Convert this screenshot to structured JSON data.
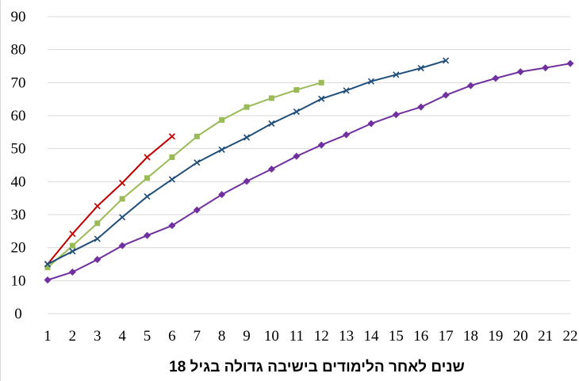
{
  "chart_data": {
    "type": "line",
    "title": "",
    "xlabel": "שנים לאחר הלימודים בישיבה גדולה בגיל 18",
    "ylabel": "",
    "ylim": [
      0,
      90
    ],
    "yticks": [
      0,
      10,
      20,
      30,
      40,
      50,
      60,
      70,
      80,
      90
    ],
    "xlim": [
      1,
      22
    ],
    "x": [
      1,
      2,
      3,
      4,
      5,
      6,
      7,
      8,
      9,
      10,
      11,
      12,
      13,
      14,
      15,
      16,
      17,
      18,
      19,
      20,
      21,
      22
    ],
    "grid": true,
    "legend": "none",
    "series": [
      {
        "color": "#c00000",
        "marker": "x",
        "x": [
          1,
          2,
          3,
          4,
          5,
          6
        ],
        "values": [
          15.0,
          24.2,
          32.6,
          39.6,
          47.4,
          53.7
        ]
      },
      {
        "color": "#9bbb59",
        "marker": "square",
        "x": [
          1,
          2,
          3,
          4,
          5,
          6,
          7,
          8,
          9,
          10,
          11,
          12
        ],
        "values": [
          14.0,
          20.6,
          27.4,
          34.8,
          41.1,
          47.4,
          53.7,
          58.7,
          62.6,
          65.3,
          67.8,
          70.0
        ]
      },
      {
        "color": "#1f4e79",
        "marker": "x",
        "x": [
          1,
          2,
          3,
          4,
          5,
          6,
          7,
          8,
          9,
          10,
          11,
          12,
          13,
          14,
          15,
          16,
          17
        ],
        "values": [
          15.0,
          18.9,
          22.7,
          29.2,
          35.5,
          40.7,
          45.8,
          49.7,
          53.4,
          57.6,
          61.2,
          65.1,
          67.6,
          70.4,
          72.4,
          74.4,
          76.7
        ]
      },
      {
        "color": "#7030a0",
        "marker": "diamond",
        "x": [
          1,
          2,
          3,
          4,
          5,
          6,
          7,
          8,
          9,
          10,
          11,
          12,
          13,
          14,
          15,
          16,
          17,
          18,
          19,
          20,
          21,
          22
        ],
        "values": [
          10.2,
          12.6,
          16.4,
          20.6,
          23.7,
          26.7,
          31.4,
          36.1,
          40.1,
          43.8,
          47.7,
          51.1,
          54.2,
          57.6,
          60.3,
          62.6,
          66.2,
          69.1,
          71.3,
          73.3,
          74.5,
          75.8
        ]
      }
    ]
  }
}
